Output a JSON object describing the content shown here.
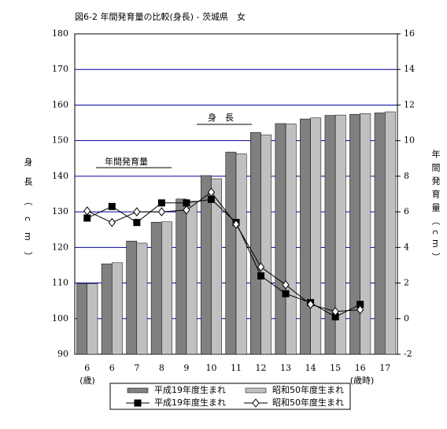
{
  "chart_data": {
    "type": "combo",
    "title": "図6-2 年間発育量の比較(身長) - 茨城県　女",
    "y_label": "身長（cm）",
    "y2_label": "年間発育量（cm）",
    "annotations": [
      "身　長",
      "年間発育量"
    ],
    "x_unit_left": "(歳)",
    "x_unit_right": "(歳時)",
    "categories": [
      "6",
      "6",
      "7",
      "8",
      "9",
      "10",
      "11",
      "12",
      "13",
      "14",
      "15",
      "16",
      "17"
    ],
    "ylim": [
      90,
      180
    ],
    "yticks": [
      90,
      100,
      110,
      120,
      130,
      140,
      150,
      160,
      170,
      180
    ],
    "y2lim": [
      -2,
      16
    ],
    "y2ticks": [
      -2,
      0,
      2,
      4,
      6,
      8,
      10,
      12,
      14,
      16
    ],
    "grid": true,
    "grid_color": "#0000a0",
    "series": [
      {
        "name": "平成19年度生まれ",
        "type": "bar",
        "color": "#808080",
        "values": [
          109.9,
          115.4,
          121.8,
          127.1,
          133.6,
          140.2,
          146.8,
          152.3,
          154.8,
          156.1,
          157.1,
          157.4,
          157.8
        ]
      },
      {
        "name": "昭和50年度生まれ",
        "type": "bar",
        "color": "#c0c0c0",
        "values": [
          109.8,
          115.7,
          121.2,
          127.2,
          133.0,
          139.3,
          146.3,
          151.6,
          154.7,
          156.4,
          157.2,
          157.6,
          158.1
        ]
      },
      {
        "name": "平成19年度生まれ",
        "type": "line",
        "axis": "y2",
        "marker": "square",
        "color": "#000000",
        "values": [
          5.65,
          6.3,
          5.4,
          6.5,
          6.5,
          6.7,
          5.4,
          2.4,
          1.4,
          0.9,
          0.1,
          0.8,
          null
        ]
      },
      {
        "name": "昭和50年度生まれ",
        "type": "line",
        "axis": "y2",
        "marker": "diamond",
        "color": "#000000",
        "values": [
          6.05,
          5.4,
          6.0,
          6.0,
          6.1,
          7.1,
          5.3,
          2.9,
          1.9,
          0.8,
          0.4,
          0.5,
          null
        ]
      }
    ]
  }
}
